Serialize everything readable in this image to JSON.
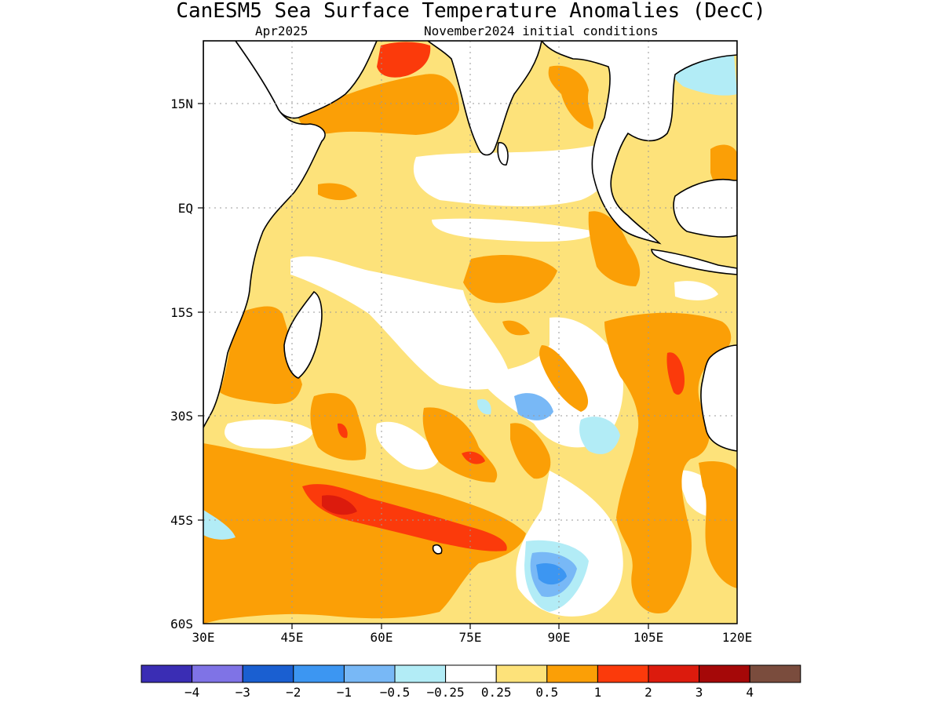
{
  "title": "CanESM5 Sea Surface Temperature Anomalies (DecC)",
  "subtitle_left": "Apr2025",
  "subtitle_right": "November2024 initial conditions",
  "map": {
    "lon_range": [
      30,
      120
    ],
    "lat_range": [
      -60,
      24
    ],
    "x_ticks": [
      "30E",
      "45E",
      "60E",
      "75E",
      "90E",
      "105E",
      "120E"
    ],
    "y_ticks": [
      "15N",
      "EQ",
      "15S",
      "30S",
      "45S",
      "60S"
    ],
    "land_color": "#ffffff",
    "coast_color": "#000000",
    "grid": "dotted"
  },
  "colorbar": {
    "colors": [
      "#3a2db4",
      "#7f73e6",
      "#1a5fd1",
      "#3c96f2",
      "#78b8f6",
      "#b2ecf6",
      "#ffffff",
      "#fde27a",
      "#fb9f06",
      "#fb3a0b",
      "#dc1b0d",
      "#a50808",
      "#7a4c3d"
    ],
    "labels": [
      "−4",
      "−3",
      "−2",
      "−1",
      "−0.5",
      "−0.25",
      "0.25",
      "0.5",
      "1",
      "2",
      "3",
      "4"
    ]
  }
}
